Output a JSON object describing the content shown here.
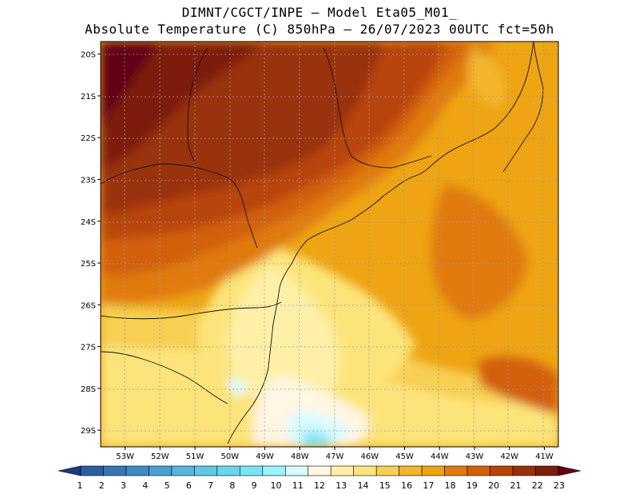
{
  "title_line1": "DIMNT/CGCT/INPE –  Model Eta05_M01_",
  "title_line2": "Absolute Temperature (C) 850hPa –  26/07/2023 00UTC fct=50h",
  "axes": {
    "lon_labels": [
      "53W",
      "52W",
      "51W",
      "50W",
      "49W",
      "48W",
      "47W",
      "46W",
      "45W",
      "44W",
      "43W",
      "42W",
      "41W"
    ],
    "lon_values": [
      -53,
      -52,
      -51,
      -50,
      -49,
      -48,
      -47,
      -46,
      -45,
      -44,
      -43,
      -42,
      -41
    ],
    "lat_labels": [
      "20S",
      "21S",
      "22S",
      "23S",
      "24S",
      "25S",
      "26S",
      "27S",
      "28S",
      "29S"
    ],
    "lat_values": [
      -20,
      -21,
      -22,
      -23,
      -24,
      -25,
      -26,
      -27,
      -28,
      -29
    ],
    "lon_range": [
      -53.7,
      -40.6
    ],
    "lat_range": [
      -29.4,
      -19.7
    ]
  },
  "colorbar": {
    "labels": [
      "1",
      "2",
      "3",
      "4",
      "5",
      "6",
      "7",
      "8",
      "9",
      "10",
      "11",
      "12",
      "13",
      "14",
      "15",
      "16",
      "17",
      "18",
      "19",
      "20",
      "21",
      "22",
      "23"
    ],
    "colors": [
      "#1f3a7a",
      "#2b5fa0",
      "#3377b5",
      "#3d8cc4",
      "#4aa0d0",
      "#55b5dc",
      "#5fc8e6",
      "#68d7ee",
      "#76e6f6",
      "#9af4fd",
      "#d8fbff",
      "#fff6e3",
      "#fff0a8",
      "#fde47a",
      "#f7cf52",
      "#f3b52e",
      "#eea413",
      "#e07a10",
      "#d2600a",
      "#b84408",
      "#9a3007",
      "#7d1e0c",
      "#620018"
    ]
  }
}
